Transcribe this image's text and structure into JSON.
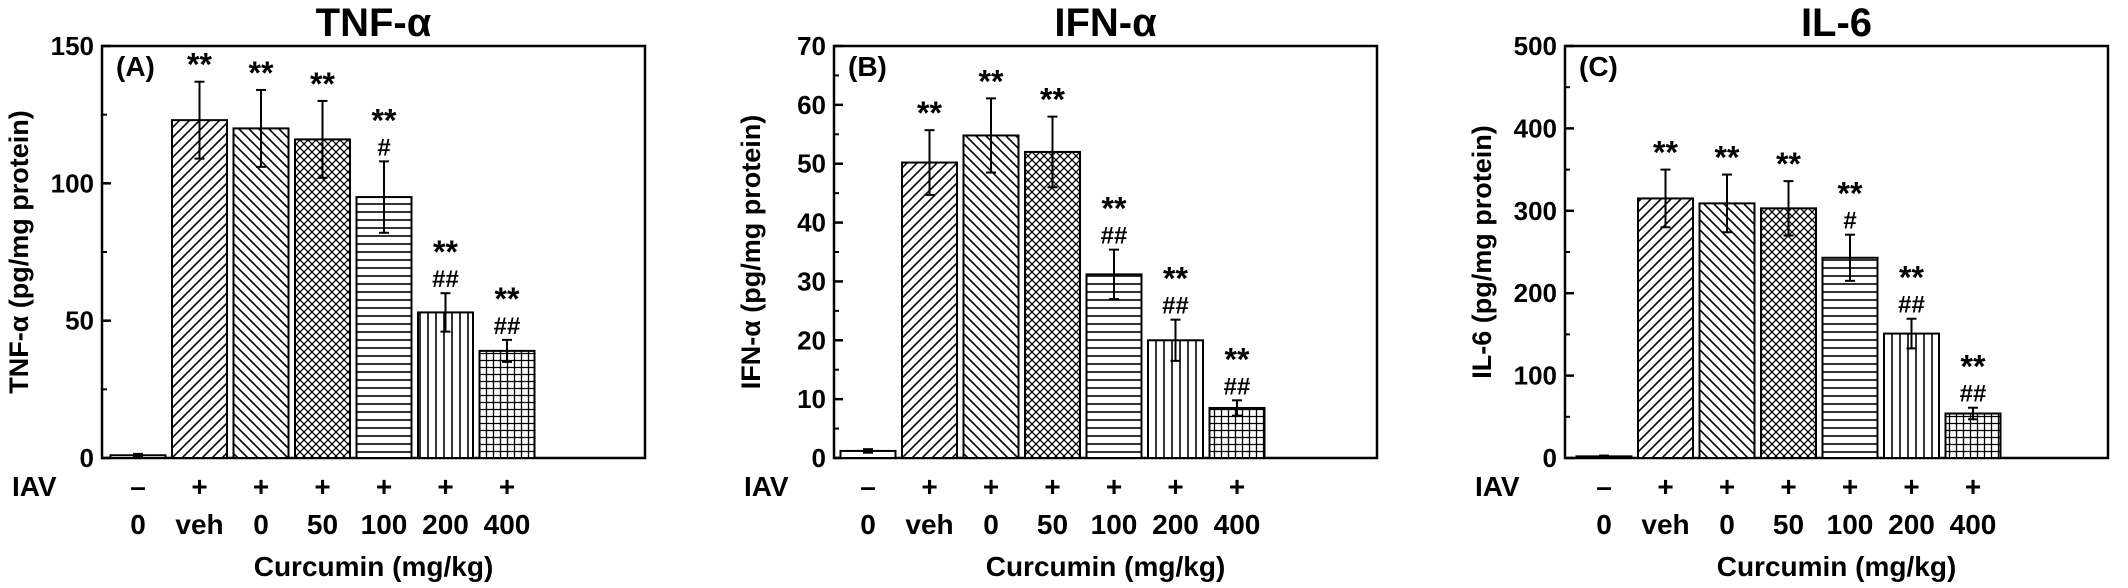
{
  "figure": {
    "x_label": "Curcumin (mg/kg)",
    "iav_label": "IAV",
    "iav_signs": [
      "–",
      "+",
      "+",
      "+",
      "+",
      "+",
      "+"
    ],
    "dose_labels": [
      "0",
      "veh",
      "0",
      "50",
      "100",
      "200",
      "400"
    ]
  },
  "chart_data": [
    {
      "type": "bar",
      "panel": "(A)",
      "title": "TNF-α",
      "ylabel": "TNF-α (pg/mg protein)",
      "ylim": [
        0,
        150
      ],
      "yticks": [
        0,
        50,
        100,
        150
      ],
      "categories": [
        "– / 0",
        "+ / veh",
        "+ / 0",
        "+ / 50",
        "+ / 100",
        "+ / 200",
        "+ / 400"
      ],
      "values": [
        1,
        123,
        120,
        116,
        95,
        53,
        39
      ],
      "errors": [
        0.5,
        14,
        14,
        14,
        13,
        7,
        4
      ],
      "patterns": [
        "none",
        "diag-fwd",
        "diag-back",
        "crosshatch",
        "horizontal",
        "vertical",
        "grid"
      ],
      "annotations": [
        [],
        [
          "**"
        ],
        [
          "**"
        ],
        [
          "**"
        ],
        [
          "**",
          "#"
        ],
        [
          "**",
          "##"
        ],
        [
          "**",
          "##"
        ]
      ]
    },
    {
      "type": "bar",
      "panel": "(B)",
      "title": "IFN-α",
      "ylabel": "IFN-α (pg/mg protein)",
      "ylim": [
        0,
        70
      ],
      "yticks": [
        0,
        10,
        20,
        30,
        40,
        50,
        60,
        70
      ],
      "categories": [
        "– / 0",
        "+ / veh",
        "+ / 0",
        "+ / 50",
        "+ / 100",
        "+ / 200",
        "+ / 400"
      ],
      "values": [
        1.2,
        50.2,
        54.8,
        52,
        31.2,
        20,
        8.5
      ],
      "errors": [
        0.3,
        5.5,
        6.3,
        6,
        4.2,
        3.5,
        1.3
      ],
      "patterns": [
        "none",
        "diag-fwd",
        "diag-back",
        "crosshatch",
        "horizontal",
        "vertical",
        "grid"
      ],
      "annotations": [
        [],
        [
          "**"
        ],
        [
          "**"
        ],
        [
          "**"
        ],
        [
          "**",
          "##"
        ],
        [
          "**",
          "##"
        ],
        [
          "**",
          "##"
        ]
      ]
    },
    {
      "type": "bar",
      "panel": "(C)",
      "title": "IL-6",
      "ylabel": "IL-6 (pg/mg protein)",
      "ylim": [
        0,
        500
      ],
      "yticks": [
        0,
        100,
        200,
        300,
        400,
        500
      ],
      "categories": [
        "– / 0",
        "+ / veh",
        "+ / 0",
        "+ / 50",
        "+ / 100",
        "+ / 200",
        "+ / 400"
      ],
      "values": [
        2,
        315,
        309,
        303,
        243,
        151,
        54
      ],
      "errors": [
        1,
        35,
        35,
        33,
        28,
        18,
        7
      ],
      "patterns": [
        "none",
        "diag-fwd",
        "diag-back",
        "crosshatch",
        "horizontal",
        "vertical",
        "grid"
      ],
      "annotations": [
        [],
        [
          "**"
        ],
        [
          "**"
        ],
        [
          "**"
        ],
        [
          "**",
          "#"
        ],
        [
          "**",
          "##"
        ],
        [
          "**",
          "##"
        ]
      ]
    }
  ]
}
